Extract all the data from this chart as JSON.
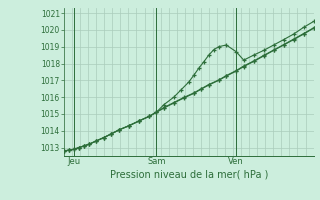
{
  "xlabel": "Pression niveau de la mer( hPa )",
  "bg_color": "#cceedd",
  "grid_color": "#aaccbb",
  "line_color": "#2d6e3a",
  "ylim": [
    1012.5,
    1021.3
  ],
  "yticks": [
    1013,
    1014,
    1015,
    1016,
    1017,
    1018,
    1019,
    1020,
    1021
  ],
  "xlim": [
    0,
    1.0
  ],
  "day_labels": [
    "Jeu",
    "Sam",
    "Ven"
  ],
  "day_positions": [
    0.04,
    0.37,
    0.69
  ],
  "vgrid_count": 32,
  "line1_x": [
    0.0,
    0.02,
    0.04,
    0.06,
    0.08,
    0.1,
    0.13,
    0.16,
    0.19,
    0.22,
    0.26,
    0.3,
    0.34,
    0.37,
    0.4,
    0.44,
    0.48,
    0.52,
    0.55,
    0.58,
    0.62,
    0.65,
    0.69,
    0.72,
    0.76,
    0.8,
    0.84,
    0.88,
    0.92,
    0.96,
    1.0
  ],
  "line1_y": [
    1012.8,
    1012.85,
    1012.9,
    1013.0,
    1013.1,
    1013.2,
    1013.4,
    1013.6,
    1013.82,
    1014.05,
    1014.3,
    1014.58,
    1014.85,
    1015.1,
    1015.35,
    1015.65,
    1015.95,
    1016.22,
    1016.48,
    1016.72,
    1017.0,
    1017.25,
    1017.55,
    1017.82,
    1018.12,
    1018.45,
    1018.78,
    1019.1,
    1019.42,
    1019.75,
    1020.1
  ],
  "line2_x": [
    0.0,
    0.02,
    0.04,
    0.06,
    0.08,
    0.1,
    0.13,
    0.16,
    0.19,
    0.22,
    0.26,
    0.3,
    0.34,
    0.37,
    0.4,
    0.44,
    0.47,
    0.5,
    0.52,
    0.54,
    0.56,
    0.58,
    0.6,
    0.62,
    0.65,
    0.69,
    0.72,
    0.76,
    0.8,
    0.84,
    0.88,
    0.92,
    0.96,
    1.0
  ],
  "line2_y": [
    1012.8,
    1012.85,
    1012.9,
    1013.0,
    1013.1,
    1013.2,
    1013.4,
    1013.6,
    1013.82,
    1014.05,
    1014.3,
    1014.58,
    1014.85,
    1015.1,
    1015.55,
    1016.0,
    1016.45,
    1016.9,
    1017.3,
    1017.72,
    1018.1,
    1018.5,
    1018.82,
    1019.0,
    1019.1,
    1018.7,
    1018.2,
    1018.5,
    1018.78,
    1019.1,
    1019.42,
    1019.75,
    1020.15,
    1020.5
  ],
  "line3_x": [
    0.0,
    0.02,
    0.04,
    0.06,
    0.08,
    0.1,
    0.13,
    0.16,
    0.19,
    0.22,
    0.26,
    0.3,
    0.34,
    0.37,
    0.4,
    0.44,
    0.48,
    0.52,
    0.55,
    0.58,
    0.62,
    0.65,
    0.69,
    0.72,
    0.76,
    0.8,
    0.84,
    0.88,
    0.92,
    0.96,
    1.0
  ],
  "line3_y": [
    1012.8,
    1012.85,
    1012.9,
    1013.0,
    1013.1,
    1013.2,
    1013.4,
    1013.6,
    1013.82,
    1014.05,
    1014.3,
    1014.58,
    1014.85,
    1015.1,
    1015.38,
    1015.68,
    1015.98,
    1016.25,
    1016.5,
    1016.75,
    1017.02,
    1017.28,
    1017.58,
    1017.85,
    1018.15,
    1018.48,
    1018.8,
    1019.12,
    1019.45,
    1019.78,
    1020.12
  ]
}
